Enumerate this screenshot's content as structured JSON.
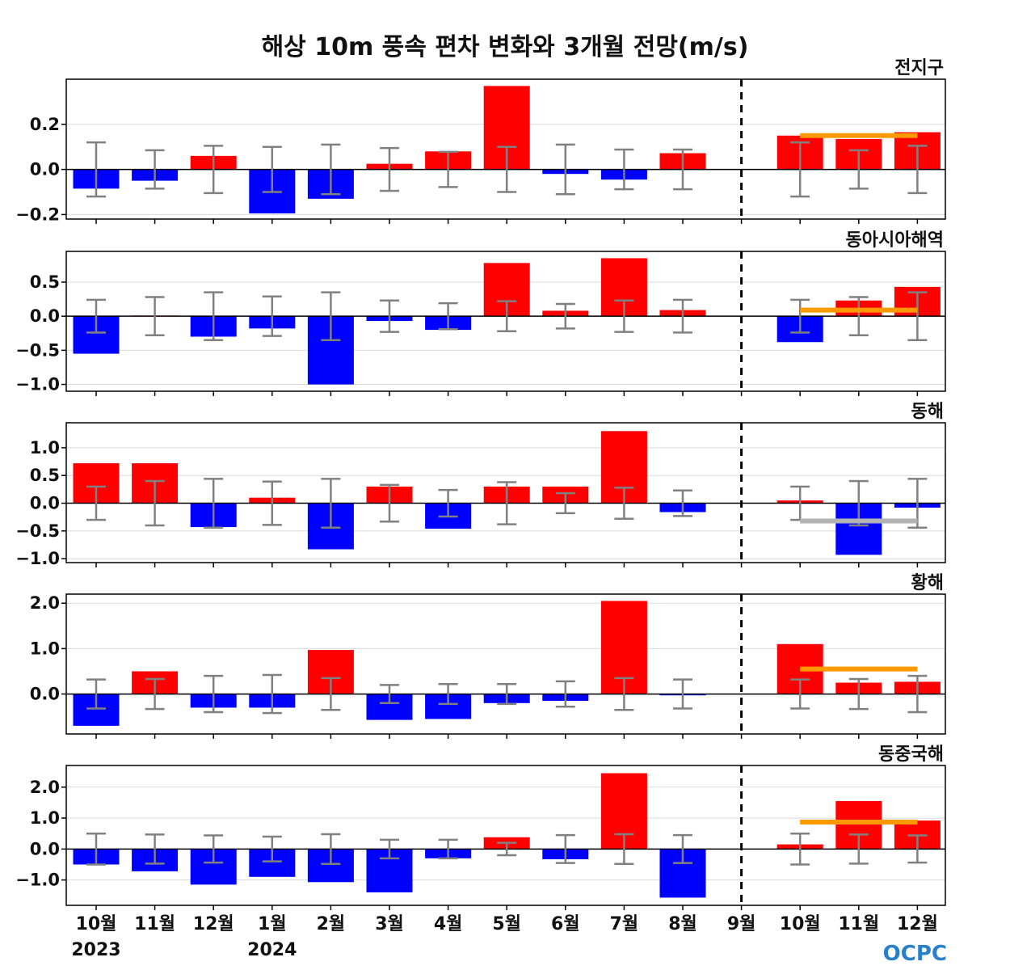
{
  "title": "해상 10m 풍속 편차 변화와 3개월 전망(m/s)",
  "logo": "OCPC",
  "colors": {
    "positive": "#ff0000",
    "negative": "#0000ff",
    "error_bar": "#808080",
    "forecast_line_positive": "#ff9900",
    "forecast_line_negative": "#b3b3b3"
  },
  "chart_data": [
    {
      "type": "bar",
      "region": "전지구",
      "categories": [
        "10월",
        "11월",
        "12월",
        "1월",
        "2월",
        "3월",
        "4월",
        "5월",
        "6월",
        "7월",
        "8월",
        "9월",
        "10월",
        "11월",
        "12월"
      ],
      "values": [
        -0.085,
        -0.05,
        0.06,
        -0.195,
        -0.13,
        0.025,
        0.08,
        0.37,
        -0.02,
        -0.045,
        0.072,
        0.0,
        0.15,
        0.135,
        0.165
      ],
      "error_range": [
        0.12,
        0.085,
        0.105,
        0.1,
        0.11,
        0.095,
        0.078,
        0.1,
        0.11,
        0.088,
        0.088,
        0,
        0.12,
        0.085,
        0.105
      ],
      "forecast_mean": 0.15,
      "ylim": [
        -0.22,
        0.4
      ],
      "yticks": [
        -0.2,
        0.0,
        0.2
      ],
      "ytick_labels": [
        "−0.2",
        "0.0",
        "0.2"
      ],
      "grid": true
    },
    {
      "type": "bar",
      "region": "동아시아해역",
      "categories": [
        "10월",
        "11월",
        "12월",
        "1월",
        "2월",
        "3월",
        "4월",
        "5월",
        "6월",
        "7월",
        "8월",
        "9월",
        "10월",
        "11월",
        "12월"
      ],
      "values": [
        -0.55,
        0.01,
        -0.3,
        -0.18,
        -1.0,
        -0.07,
        -0.2,
        0.78,
        0.08,
        0.85,
        0.09,
        0.0,
        -0.38,
        0.23,
        0.43
      ],
      "error_range": [
        0.24,
        0.28,
        0.35,
        0.29,
        0.35,
        0.23,
        0.19,
        0.22,
        0.18,
        0.23,
        0.24,
        0,
        0.24,
        0.28,
        0.35
      ],
      "forecast_mean": 0.09,
      "ylim": [
        -1.1,
        0.95
      ],
      "yticks": [
        -1.0,
        -0.5,
        0.0,
        0.5
      ],
      "ytick_labels": [
        "−1.0",
        "−0.5",
        "0.0",
        "0.5"
      ],
      "grid": true
    },
    {
      "type": "bar",
      "region": "동해",
      "categories": [
        "10월",
        "11월",
        "12월",
        "1월",
        "2월",
        "3월",
        "4월",
        "5월",
        "6월",
        "7월",
        "8월",
        "9월",
        "10월",
        "11월",
        "12월"
      ],
      "values": [
        0.72,
        0.72,
        -0.43,
        0.1,
        -0.83,
        0.3,
        -0.46,
        0.3,
        0.3,
        1.3,
        -0.16,
        0.0,
        0.05,
        -0.93,
        -0.08
      ],
      "error_range": [
        0.3,
        0.4,
        0.44,
        0.39,
        0.44,
        0.33,
        0.24,
        0.38,
        0.18,
        0.28,
        0.23,
        0,
        0.3,
        0.4,
        0.44
      ],
      "forecast_mean": -0.32,
      "ylim": [
        -1.07,
        1.45
      ],
      "yticks": [
        -1.0,
        -0.5,
        0.0,
        0.5,
        1.0
      ],
      "ytick_labels": [
        "−1.0",
        "−0.5",
        "0.0",
        "0.5",
        "1.0"
      ],
      "grid": true
    },
    {
      "type": "bar",
      "region": "황해",
      "categories": [
        "10월",
        "11월",
        "12월",
        "1월",
        "2월",
        "3월",
        "4월",
        "5월",
        "6월",
        "7월",
        "8월",
        "9월",
        "10월",
        "11월",
        "12월"
      ],
      "values": [
        -0.7,
        0.5,
        -0.3,
        -0.3,
        0.97,
        -0.57,
        -0.55,
        -0.2,
        -0.15,
        2.05,
        -0.03,
        0.0,
        1.1,
        0.25,
        0.27
      ],
      "error_range": [
        0.32,
        0.33,
        0.4,
        0.42,
        0.35,
        0.2,
        0.22,
        0.22,
        0.28,
        0.35,
        0.32,
        0,
        0.32,
        0.33,
        0.4
      ],
      "forecast_mean": 0.55,
      "ylim": [
        -0.88,
        2.2
      ],
      "yticks": [
        0.0,
        1.0,
        2.0
      ],
      "ytick_labels": [
        "0.0",
        "1.0",
        "2.0"
      ],
      "grid": true
    },
    {
      "type": "bar",
      "region": "동중국해",
      "categories": [
        "10월",
        "11월",
        "12월",
        "1월",
        "2월",
        "3월",
        "4월",
        "5월",
        "6월",
        "7월",
        "8월",
        "9월",
        "10월",
        "11월",
        "12월"
      ],
      "values": [
        -0.5,
        -0.72,
        -1.15,
        -0.9,
        -1.07,
        -1.4,
        -0.3,
        0.38,
        -0.33,
        2.45,
        -1.57,
        0.0,
        0.15,
        1.55,
        0.92
      ],
      "error_range": [
        0.5,
        0.47,
        0.44,
        0.4,
        0.48,
        0.3,
        0.3,
        0.2,
        0.45,
        0.48,
        0.45,
        0,
        0.5,
        0.47,
        0.44
      ],
      "forecast_mean": 0.87,
      "ylim": [
        -1.82,
        2.7
      ],
      "yticks": [
        -1.0,
        0.0,
        1.0,
        2.0
      ],
      "ytick_labels": [
        "−1.0",
        "0.0",
        "1.0",
        "2.0"
      ],
      "grid": true
    }
  ],
  "x_axis": {
    "month_labels": [
      "10월",
      "11월",
      "12월",
      "1월",
      "2월",
      "3월",
      "4월",
      "5월",
      "6월",
      "7월",
      "8월",
      "9월",
      "10월",
      "11월",
      "12월"
    ],
    "year_labels": [
      {
        "text": "2023",
        "under_index": 0
      },
      {
        "text": "2024",
        "under_index": 3
      }
    ],
    "forecast_divider_index": 11
  }
}
